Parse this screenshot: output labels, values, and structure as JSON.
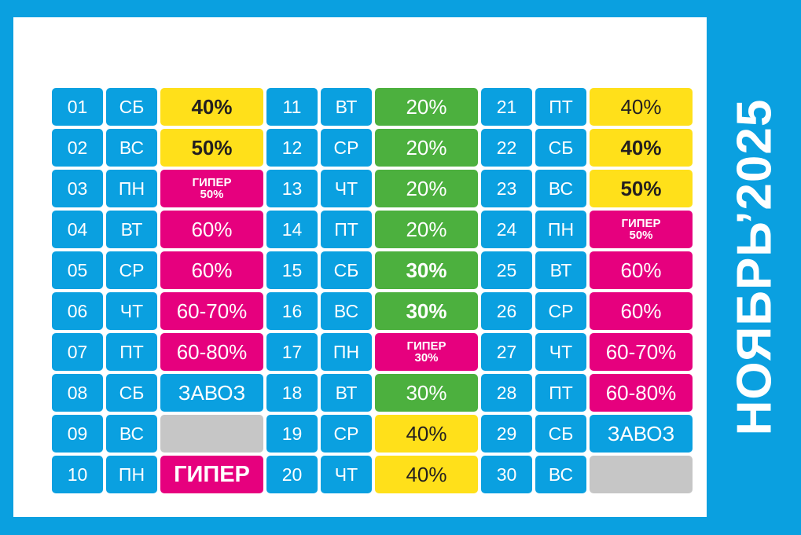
{
  "title": "НОЯБРЬ’2025",
  "colors": {
    "background": "#0aa0e0",
    "panel": "#ffffff",
    "yellow": "#ffe01a",
    "green": "#4cb03e",
    "pink": "#e6007e",
    "gray": "#c6c6c6"
  },
  "calendar": {
    "columns": [
      [
        {
          "day": "01",
          "weekday": "СБ",
          "text": "40%",
          "color": "yellow",
          "bold": true
        },
        {
          "day": "02",
          "weekday": "ВС",
          "text": "50%",
          "color": "yellow",
          "bold": true
        },
        {
          "day": "03",
          "weekday": "ПН",
          "text": "ГИПЕР",
          "sub": "50%",
          "color": "pink",
          "bold": true
        },
        {
          "day": "04",
          "weekday": "ВТ",
          "text": "60%",
          "color": "pink",
          "bold": false
        },
        {
          "day": "05",
          "weekday": "СР",
          "text": "60%",
          "color": "pink",
          "bold": false
        },
        {
          "day": "06",
          "weekday": "ЧТ",
          "text": "60-70%",
          "color": "pink",
          "bold": false
        },
        {
          "day": "07",
          "weekday": "ПТ",
          "text": "60-80%",
          "color": "pink",
          "bold": false
        },
        {
          "day": "08",
          "weekday": "СБ",
          "text": "ЗАВОЗ",
          "color": "blue",
          "bold": false
        },
        {
          "day": "09",
          "weekday": "ВС",
          "text": "",
          "color": "gray",
          "bold": false
        },
        {
          "day": "10",
          "weekday": "ПН",
          "text": "ГИПЕР",
          "color": "pink",
          "bold": true,
          "big": true
        }
      ],
      [
        {
          "day": "11",
          "weekday": "ВТ",
          "text": "20%",
          "color": "green",
          "bold": false
        },
        {
          "day": "12",
          "weekday": "СР",
          "text": "20%",
          "color": "green",
          "bold": false
        },
        {
          "day": "13",
          "weekday": "ЧТ",
          "text": "20%",
          "color": "green",
          "bold": false
        },
        {
          "day": "14",
          "weekday": "ПТ",
          "text": "20%",
          "color": "green",
          "bold": false
        },
        {
          "day": "15",
          "weekday": "СБ",
          "text": "30%",
          "color": "green",
          "bold": true
        },
        {
          "day": "16",
          "weekday": "ВС",
          "text": "30%",
          "color": "green",
          "bold": true
        },
        {
          "day": "17",
          "weekday": "ПН",
          "text": "ГИПЕР",
          "sub": "30%",
          "color": "pink",
          "bold": true
        },
        {
          "day": "18",
          "weekday": "ВТ",
          "text": "30%",
          "color": "green",
          "bold": false
        },
        {
          "day": "19",
          "weekday": "СР",
          "text": "40%",
          "color": "yellow",
          "bold": false
        },
        {
          "day": "20",
          "weekday": "ЧТ",
          "text": "40%",
          "color": "yellow",
          "bold": false
        }
      ],
      [
        {
          "day": "21",
          "weekday": "ПТ",
          "text": "40%",
          "color": "yellow",
          "bold": false
        },
        {
          "day": "22",
          "weekday": "СБ",
          "text": "40%",
          "color": "yellow",
          "bold": true
        },
        {
          "day": "23",
          "weekday": "ВС",
          "text": "50%",
          "color": "yellow",
          "bold": true
        },
        {
          "day": "24",
          "weekday": "ПН",
          "text": "ГИПЕР",
          "sub": "50%",
          "color": "pink",
          "bold": true
        },
        {
          "day": "25",
          "weekday": "ВТ",
          "text": "60%",
          "color": "pink",
          "bold": false
        },
        {
          "day": "26",
          "weekday": "СР",
          "text": "60%",
          "color": "pink",
          "bold": false
        },
        {
          "day": "27",
          "weekday": "ЧТ",
          "text": "60-70%",
          "color": "pink",
          "bold": false
        },
        {
          "day": "28",
          "weekday": "ПТ",
          "text": "60-80%",
          "color": "pink",
          "bold": false
        },
        {
          "day": "29",
          "weekday": "СБ",
          "text": "ЗАВОЗ",
          "color": "blue",
          "bold": false
        },
        {
          "day": "30",
          "weekday": "ВС",
          "text": "",
          "color": "gray",
          "bold": false
        }
      ]
    ]
  }
}
